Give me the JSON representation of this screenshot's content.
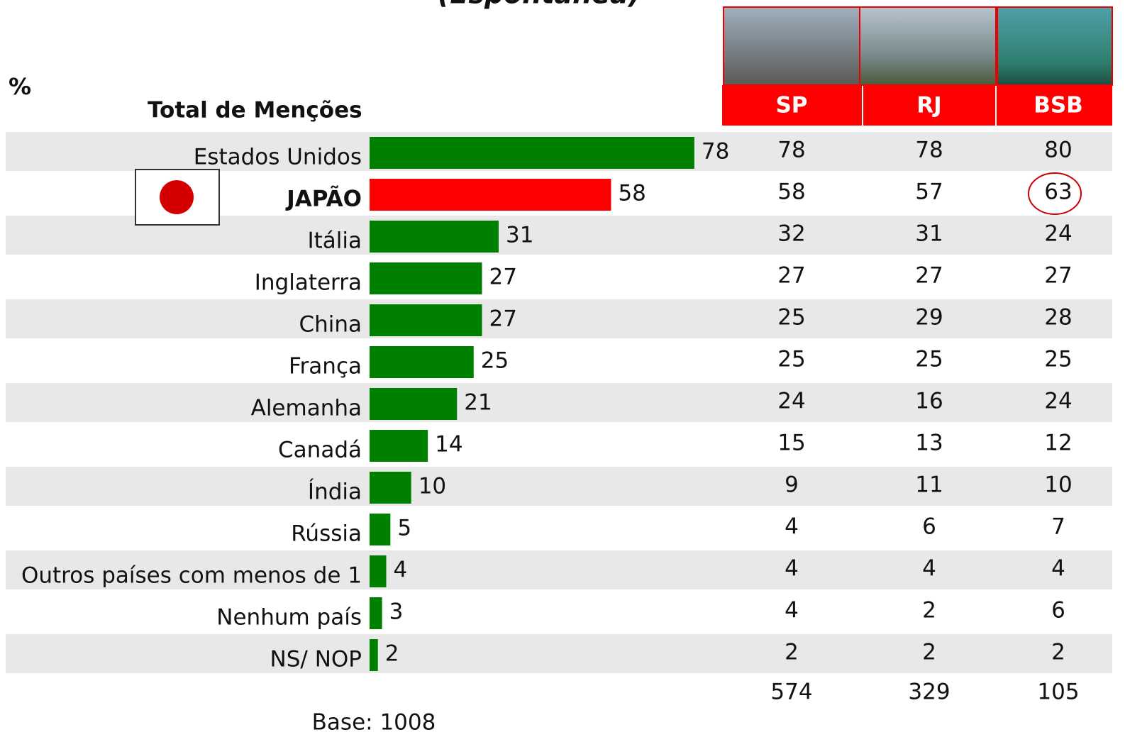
{
  "chart_data": {
    "type": "bar",
    "title": "(Espontânea)",
    "unit_label": "%",
    "subtitle": "Total de Menções",
    "categories": [
      "Estados Unidos",
      "JAPÃO",
      "Itália",
      "Inglaterra",
      "China",
      "França",
      "Alemanha",
      "Canadá",
      "Índia",
      "Rússia",
      "Outros países com menos de 1",
      "Nenhum país",
      "NS/ NOP"
    ],
    "values": [
      78,
      58,
      31,
      27,
      27,
      25,
      21,
      14,
      10,
      5,
      4,
      3,
      2
    ],
    "color": "#008000",
    "colors": [
      "#008000",
      "#ff0000",
      "#008000",
      "#008000",
      "#008000",
      "#008000",
      "#008000",
      "#008000",
      "#008000",
      "#008000",
      "#008000",
      "#008000",
      "#008000"
    ],
    "table": {
      "columns": [
        "SP",
        "RJ",
        "BSB"
      ],
      "rows": [
        [
          78,
          78,
          80
        ],
        [
          58,
          57,
          63
        ],
        [
          32,
          31,
          24
        ],
        [
          27,
          27,
          27
        ],
        [
          25,
          29,
          28
        ],
        [
          25,
          25,
          25
        ],
        [
          24,
          16,
          24
        ],
        [
          15,
          13,
          12
        ],
        [
          9,
          11,
          10
        ],
        [
          4,
          6,
          7
        ],
        [
          4,
          4,
          4
        ],
        [
          4,
          2,
          6
        ],
        [
          2,
          2,
          2
        ]
      ],
      "totals": [
        574,
        329,
        105
      ]
    },
    "base": "Base: 1008"
  }
}
